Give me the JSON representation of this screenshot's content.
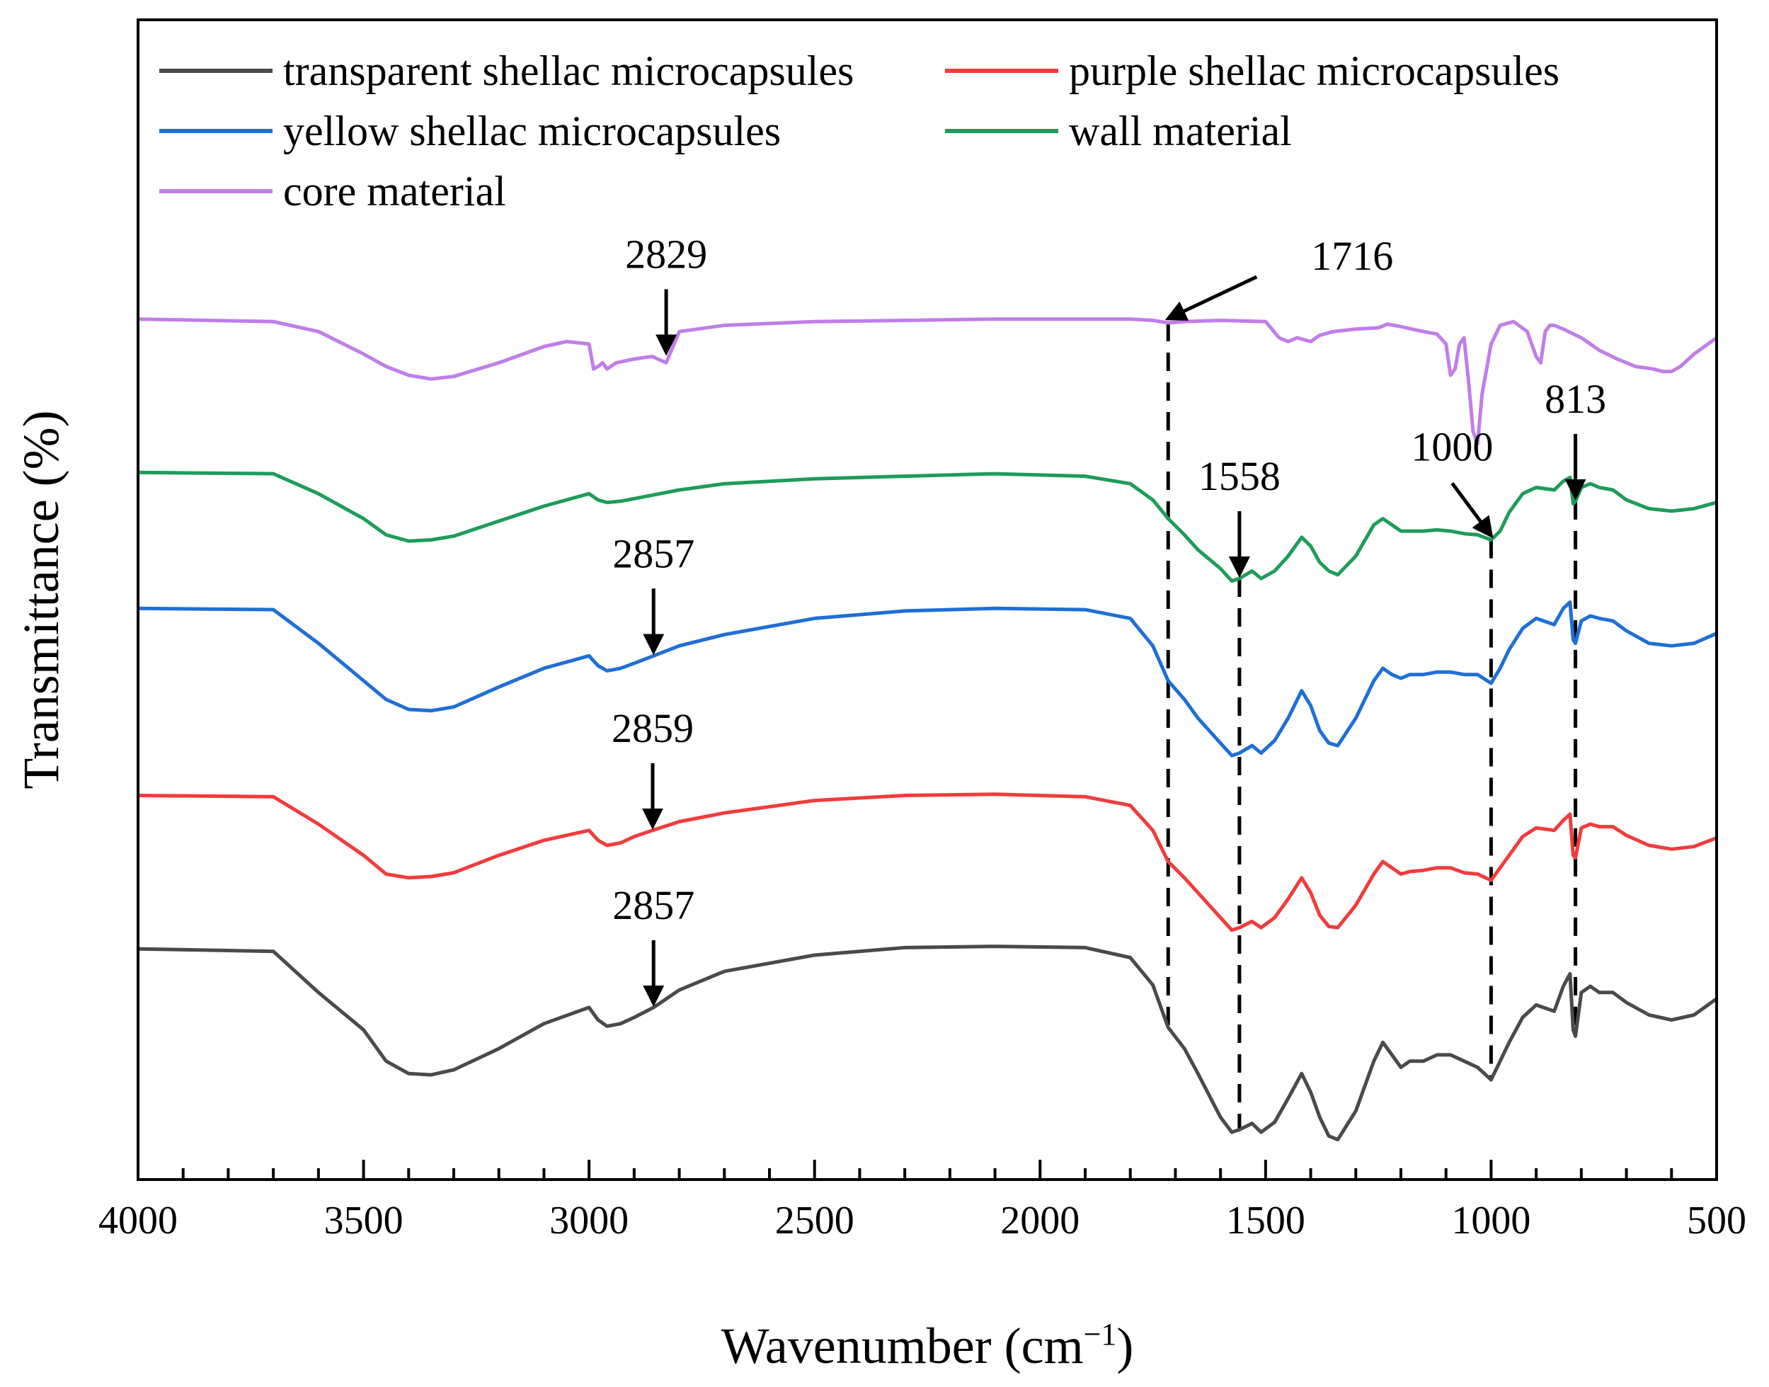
{
  "chart_data": {
    "type": "line",
    "title": "",
    "xlabel": "Wavenumber (cm",
    "xlabel_sup": "−1",
    "xlabel_close": ")",
    "ylabel": "Transmittance (%)",
    "xlim": [
      4000,
      500
    ],
    "x_reversed": true,
    "ylim": [
      0,
      9.3
    ],
    "y_ticks_shown": false,
    "x_ticks": [
      "4000",
      "3500",
      "3000",
      "2500",
      "2000",
      "1500",
      "1000",
      "500"
    ],
    "legend_position": "top-left",
    "series": [
      {
        "name": "transparent shellac microcapsules",
        "color": "#4a4a4a",
        "x": [
          4000,
          3700,
          3600,
          3500,
          3450,
          3400,
          3350,
          3300,
          3200,
          3100,
          3000,
          2980,
          2960,
          2930,
          2900,
          2857,
          2800,
          2700,
          2500,
          2300,
          2100,
          1900,
          1800,
          1750,
          1716,
          1680,
          1650,
          1600,
          1575,
          1558,
          1530,
          1510,
          1480,
          1450,
          1420,
          1400,
          1380,
          1360,
          1340,
          1300,
          1260,
          1240,
          1220,
          1200,
          1180,
          1150,
          1120,
          1090,
          1060,
          1030,
          1000,
          980,
          960,
          930,
          900,
          860,
          840,
          825,
          818,
          813,
          800,
          780,
          760,
          730,
          700,
          650,
          600,
          550,
          500
        ],
        "y": [
          1.85,
          1.83,
          1.5,
          1.2,
          0.95,
          0.85,
          0.84,
          0.88,
          1.05,
          1.25,
          1.38,
          1.28,
          1.23,
          1.25,
          1.3,
          1.38,
          1.52,
          1.67,
          1.8,
          1.86,
          1.87,
          1.86,
          1.78,
          1.56,
          1.22,
          1.05,
          0.85,
          0.5,
          0.38,
          0.4,
          0.45,
          0.38,
          0.46,
          0.65,
          0.85,
          0.7,
          0.5,
          0.35,
          0.32,
          0.55,
          0.95,
          1.1,
          1.0,
          0.9,
          0.95,
          0.95,
          1.0,
          1.0,
          0.95,
          0.9,
          0.8,
          0.95,
          1.1,
          1.3,
          1.4,
          1.35,
          1.55,
          1.65,
          1.2,
          1.15,
          1.5,
          1.55,
          1.5,
          1.5,
          1.42,
          1.32,
          1.28,
          1.32,
          1.45
        ]
      },
      {
        "name": "purple shellac microcapsules",
        "color": "#f03c3c",
        "x": [
          4000,
          3700,
          3600,
          3500,
          3450,
          3400,
          3350,
          3300,
          3200,
          3100,
          3000,
          2980,
          2960,
          2930,
          2900,
          2859,
          2800,
          2700,
          2500,
          2300,
          2100,
          1900,
          1800,
          1750,
          1716,
          1680,
          1650,
          1600,
          1575,
          1558,
          1530,
          1510,
          1480,
          1450,
          1420,
          1400,
          1380,
          1360,
          1340,
          1300,
          1260,
          1240,
          1220,
          1200,
          1180,
          1150,
          1120,
          1090,
          1060,
          1030,
          1000,
          980,
          960,
          930,
          900,
          860,
          840,
          825,
          818,
          813,
          800,
          780,
          760,
          730,
          700,
          650,
          600,
          550,
          500
        ],
        "y": [
          3.08,
          3.07,
          2.85,
          2.6,
          2.45,
          2.42,
          2.43,
          2.46,
          2.6,
          2.72,
          2.8,
          2.72,
          2.68,
          2.7,
          2.75,
          2.8,
          2.87,
          2.94,
          3.04,
          3.08,
          3.09,
          3.07,
          3.0,
          2.8,
          2.55,
          2.42,
          2.3,
          2.1,
          2.0,
          2.02,
          2.07,
          2.02,
          2.1,
          2.25,
          2.42,
          2.3,
          2.12,
          2.03,
          2.02,
          2.2,
          2.45,
          2.55,
          2.5,
          2.45,
          2.47,
          2.48,
          2.5,
          2.5,
          2.46,
          2.45,
          2.4,
          2.5,
          2.6,
          2.75,
          2.82,
          2.8,
          2.88,
          2.93,
          2.6,
          2.58,
          2.82,
          2.85,
          2.83,
          2.83,
          2.76,
          2.68,
          2.65,
          2.67,
          2.74
        ]
      },
      {
        "name": "yellow shellac microcapsules",
        "color": "#1f6fd6",
        "x": [
          4000,
          3700,
          3600,
          3500,
          3450,
          3400,
          3350,
          3300,
          3200,
          3100,
          3000,
          2980,
          2960,
          2930,
          2900,
          2857,
          2800,
          2700,
          2500,
          2300,
          2100,
          1900,
          1800,
          1750,
          1716,
          1680,
          1650,
          1600,
          1575,
          1558,
          1530,
          1510,
          1480,
          1450,
          1420,
          1400,
          1380,
          1360,
          1340,
          1300,
          1260,
          1240,
          1220,
          1200,
          1180,
          1150,
          1120,
          1090,
          1060,
          1030,
          1000,
          980,
          960,
          930,
          900,
          860,
          840,
          825,
          818,
          813,
          800,
          780,
          760,
          730,
          700,
          650,
          600,
          550,
          500
        ],
        "y": [
          4.58,
          4.57,
          4.3,
          4.0,
          3.85,
          3.77,
          3.76,
          3.79,
          3.95,
          4.1,
          4.2,
          4.12,
          4.08,
          4.1,
          4.14,
          4.2,
          4.28,
          4.37,
          4.5,
          4.56,
          4.58,
          4.57,
          4.5,
          4.28,
          4.0,
          3.85,
          3.7,
          3.5,
          3.4,
          3.42,
          3.48,
          3.42,
          3.52,
          3.7,
          3.92,
          3.8,
          3.6,
          3.5,
          3.48,
          3.7,
          4.0,
          4.1,
          4.05,
          4.02,
          4.05,
          4.05,
          4.07,
          4.07,
          4.05,
          4.05,
          3.98,
          4.1,
          4.25,
          4.42,
          4.5,
          4.45,
          4.58,
          4.63,
          4.33,
          4.3,
          4.48,
          4.52,
          4.5,
          4.48,
          4.4,
          4.3,
          4.28,
          4.3,
          4.38
        ]
      },
      {
        "name": "wall material",
        "color": "#1e9c5a",
        "x": [
          4000,
          3700,
          3600,
          3500,
          3450,
          3400,
          3350,
          3300,
          3200,
          3100,
          3000,
          2980,
          2960,
          2930,
          2900,
          2800,
          2700,
          2500,
          2300,
          2100,
          1900,
          1800,
          1750,
          1716,
          1680,
          1650,
          1600,
          1575,
          1558,
          1530,
          1510,
          1480,
          1450,
          1420,
          1400,
          1380,
          1360,
          1340,
          1300,
          1260,
          1240,
          1220,
          1200,
          1180,
          1150,
          1120,
          1090,
          1060,
          1030,
          1000,
          980,
          960,
          930,
          900,
          860,
          840,
          825,
          818,
          813,
          800,
          780,
          760,
          730,
          700,
          650,
          600,
          550,
          500
        ],
        "y": [
          5.67,
          5.66,
          5.5,
          5.3,
          5.17,
          5.12,
          5.13,
          5.16,
          5.28,
          5.4,
          5.5,
          5.45,
          5.43,
          5.44,
          5.46,
          5.53,
          5.58,
          5.62,
          5.64,
          5.66,
          5.64,
          5.58,
          5.45,
          5.3,
          5.17,
          5.05,
          4.9,
          4.8,
          4.82,
          4.88,
          4.82,
          4.88,
          5.0,
          5.15,
          5.08,
          4.95,
          4.88,
          4.85,
          5.0,
          5.25,
          5.3,
          5.25,
          5.2,
          5.2,
          5.2,
          5.21,
          5.2,
          5.18,
          5.17,
          5.13,
          5.2,
          5.35,
          5.5,
          5.55,
          5.53,
          5.6,
          5.63,
          5.42,
          5.44,
          5.55,
          5.58,
          5.55,
          5.53,
          5.45,
          5.38,
          5.36,
          5.38,
          5.43
        ]
      },
      {
        "name": "core material",
        "color": "#c07ee8",
        "x": [
          4000,
          3700,
          3600,
          3500,
          3450,
          3400,
          3350,
          3300,
          3200,
          3100,
          3050,
          3000,
          2990,
          2980,
          2970,
          2960,
          2940,
          2900,
          2860,
          2829,
          2800,
          2700,
          2500,
          2300,
          2100,
          1900,
          1800,
          1750,
          1716,
          1680,
          1600,
          1500,
          1470,
          1450,
          1430,
          1400,
          1380,
          1350,
          1300,
          1250,
          1230,
          1200,
          1150,
          1120,
          1100,
          1090,
          1080,
          1070,
          1060,
          1050,
          1040,
          1030,
          1020,
          1000,
          980,
          950,
          920,
          900,
          890,
          880,
          870,
          860,
          840,
          800,
          760,
          720,
          680,
          640,
          620,
          600,
          580,
          550,
          500
        ],
        "y": [
          6.9,
          6.88,
          6.8,
          6.62,
          6.52,
          6.45,
          6.42,
          6.44,
          6.55,
          6.68,
          6.72,
          6.7,
          6.5,
          6.52,
          6.55,
          6.5,
          6.55,
          6.58,
          6.6,
          6.55,
          6.8,
          6.85,
          6.88,
          6.89,
          6.9,
          6.9,
          6.9,
          6.89,
          6.87,
          6.88,
          6.89,
          6.88,
          6.75,
          6.72,
          6.75,
          6.72,
          6.77,
          6.8,
          6.82,
          6.83,
          6.86,
          6.84,
          6.8,
          6.78,
          6.7,
          6.45,
          6.5,
          6.7,
          6.75,
          6.4,
          6.0,
          5.9,
          6.3,
          6.7,
          6.85,
          6.88,
          6.8,
          6.6,
          6.55,
          6.8,
          6.85,
          6.85,
          6.82,
          6.75,
          6.65,
          6.58,
          6.52,
          6.5,
          6.48,
          6.48,
          6.52,
          6.62,
          6.75
        ]
      }
    ],
    "annotations": [
      {
        "label": "2829",
        "style": "arrow-down",
        "x": 2829,
        "y": 6.6,
        "series": "core material"
      },
      {
        "label": "1716",
        "style": "arrow-diagonal",
        "x": 1716,
        "y": 6.87,
        "series": "core material"
      },
      {
        "label": "1558",
        "style": "arrow-down",
        "x": 1558,
        "y": 4.82,
        "series": "wall material"
      },
      {
        "label": "1000",
        "style": "arrow-diagonal",
        "x": 1000,
        "y": 5.13,
        "series": "wall material"
      },
      {
        "label": "813",
        "style": "arrow-down",
        "x": 813,
        "y": 5.44,
        "series": "wall material"
      },
      {
        "label": "2857",
        "style": "arrow-down",
        "x": 2857,
        "y": 4.2,
        "series": "yellow shellac microcapsules"
      },
      {
        "label": "2859",
        "style": "arrow-down",
        "x": 2859,
        "y": 2.8,
        "series": "purple shellac microcapsules"
      },
      {
        "label": "2857",
        "style": "arrow-down",
        "x": 2857,
        "y": 1.38,
        "series": "transparent shellac microcapsules"
      }
    ],
    "reference_lines": [
      {
        "x": 1716,
        "from_series": "core material",
        "to_series": "transparent shellac microcapsules"
      },
      {
        "x": 1558,
        "from_series": "wall material",
        "to_series": "transparent shellac microcapsules"
      },
      {
        "x": 1000,
        "from_series": "wall material",
        "to_series": "transparent shellac microcapsules"
      },
      {
        "x": 813,
        "from_series": "wall material",
        "to_series": "transparent shellac microcapsules"
      }
    ]
  }
}
